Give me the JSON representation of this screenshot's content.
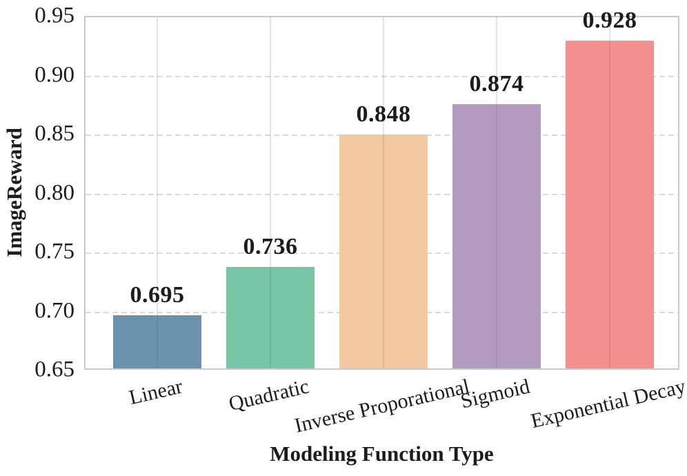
{
  "chart_data": {
    "type": "bar",
    "title": "",
    "xlabel": "Modeling Function Type",
    "ylabel": "ImageReward",
    "categories": [
      "Linear",
      "Quadratic",
      "Inverse Proporational",
      "Sigmoid",
      "Exponential Decay"
    ],
    "values": [
      0.695,
      0.736,
      0.848,
      0.874,
      0.928
    ],
    "bar_value_labels": [
      "0.695",
      "0.736",
      "0.848",
      "0.874",
      "0.928"
    ],
    "bar_colors": [
      "#6a91ae",
      "#77c7a6",
      "#f3c9a2",
      "#b29ac1",
      "#f5908f"
    ],
    "ylim": [
      0.65,
      0.95
    ],
    "yticks": [
      "0.65",
      "0.70",
      "0.75",
      "0.80",
      "0.85",
      "0.90",
      "0.95"
    ],
    "x_tick_rotation_deg": 13,
    "grid": {
      "horizontal": "dashed",
      "vertical": "solid"
    },
    "legend": "none",
    "colors": {
      "text": "#1c1c1c",
      "grid": "#d9d9d9",
      "spine": "#c9c9c9",
      "background": "#ffffff"
    }
  }
}
